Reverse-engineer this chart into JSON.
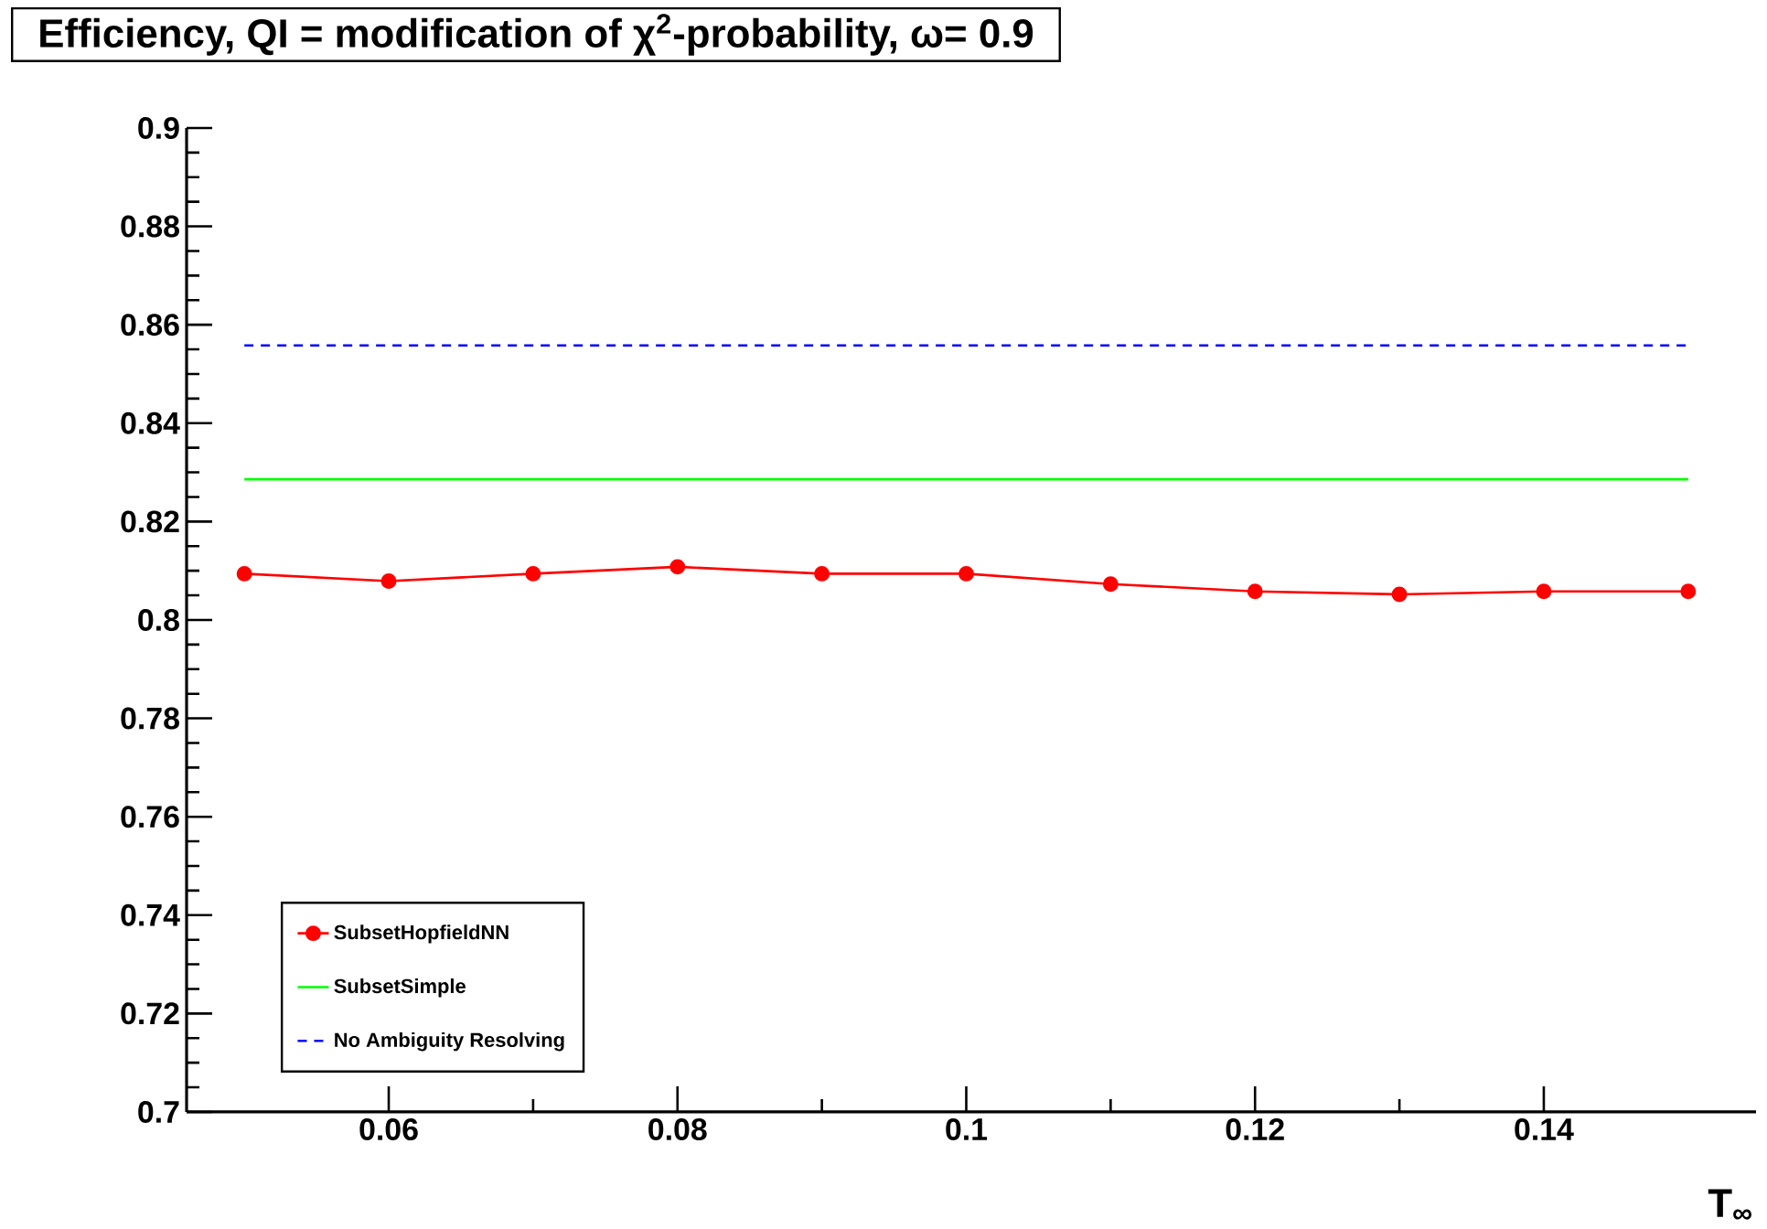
{
  "chart_data": {
    "type": "line",
    "title": "Efficiency, QI = modification of  χ$^{2}$-probability, ω= 0.9",
    "xlabel": "T$_{∞}$",
    "x": [
      0.05,
      0.06,
      0.07,
      0.08,
      0.09,
      0.1,
      0.11,
      0.12,
      0.13,
      0.14,
      0.15
    ],
    "series": [
      {
        "name": "SubsetHopfieldNN",
        "color": "#ff0000",
        "marker": "circle",
        "line_style": "solid",
        "values": [
          0.8094,
          0.8079,
          0.8094,
          0.8108,
          0.8094,
          0.8094,
          0.8073,
          0.8058,
          0.8052,
          0.8058,
          0.8058
        ]
      },
      {
        "name": "SubsetSimple",
        "color": "#00ff00",
        "marker": "none",
        "line_style": "solid",
        "values": [
          0.8286,
          0.8286,
          0.8286,
          0.8286,
          0.8286,
          0.8286,
          0.8286,
          0.8286,
          0.8286,
          0.8286,
          0.8286
        ]
      },
      {
        "name": "No Ambiguity Resolving",
        "color": "#0000ff",
        "marker": "none",
        "line_style": "dashed",
        "values": [
          0.8558,
          0.8558,
          0.8558,
          0.8558,
          0.8558,
          0.8558,
          0.8558,
          0.8558,
          0.8558,
          0.8558,
          0.8558
        ]
      }
    ],
    "xlim": [
      0.046,
      0.1547
    ],
    "ylim": [
      0.7,
      0.9
    ],
    "xticks": [
      0.06,
      0.08,
      0.1,
      0.12,
      0.14
    ],
    "yticks": [
      0.7,
      0.72,
      0.74,
      0.76,
      0.78,
      0.8,
      0.82,
      0.84,
      0.86,
      0.88,
      0.9
    ],
    "grid": false,
    "legend": "bottom left"
  }
}
